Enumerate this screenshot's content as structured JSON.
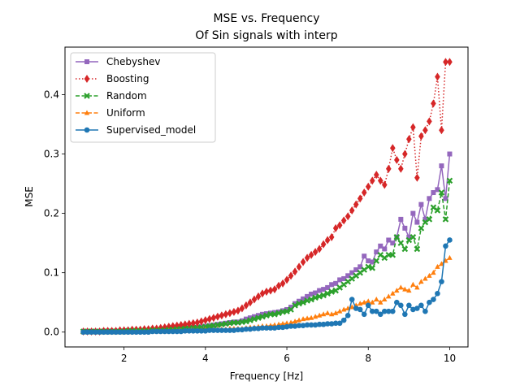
{
  "chart_data": {
    "type": "line",
    "title_lines": [
      "MSE vs. Frequency",
      "Of Sin signals with interp"
    ],
    "xlabel": "Frequency [Hz]",
    "ylabel": "MSE",
    "xlim": [
      0.55,
      10.45
    ],
    "ylim": [
      -0.025,
      0.48
    ],
    "xticks": [
      2,
      4,
      6,
      8,
      10
    ],
    "yticks": [
      0.0,
      0.1,
      0.2,
      0.3,
      0.4
    ],
    "xtick_labels": [
      "2",
      "4",
      "6",
      "8",
      "10"
    ],
    "ytick_labels": [
      "0.0",
      "0.1",
      "0.2",
      "0.3",
      "0.4"
    ],
    "grid": false,
    "legend_position": "upper-left",
    "x": [
      1.0,
      1.1,
      1.2,
      1.3,
      1.4,
      1.5,
      1.6,
      1.7,
      1.8,
      1.9,
      2.0,
      2.1,
      2.2,
      2.3,
      2.4,
      2.5,
      2.6,
      2.7,
      2.8,
      2.9,
      3.0,
      3.1,
      3.2,
      3.3,
      3.4,
      3.5,
      3.6,
      3.7,
      3.8,
      3.9,
      4.0,
      4.1,
      4.2,
      4.3,
      4.4,
      4.5,
      4.6,
      4.7,
      4.8,
      4.9,
      5.0,
      5.1,
      5.2,
      5.3,
      5.4,
      5.5,
      5.6,
      5.7,
      5.8,
      5.9,
      6.0,
      6.1,
      6.2,
      6.3,
      6.4,
      6.5,
      6.6,
      6.7,
      6.8,
      6.9,
      7.0,
      7.1,
      7.2,
      7.3,
      7.4,
      7.5,
      7.6,
      7.7,
      7.8,
      7.9,
      8.0,
      8.1,
      8.2,
      8.3,
      8.4,
      8.5,
      8.6,
      8.7,
      8.8,
      8.9,
      9.0,
      9.1,
      9.2,
      9.3,
      9.4,
      9.5,
      9.6,
      9.7,
      9.8,
      9.9,
      10.0
    ],
    "series": [
      {
        "name": "Chebyshev",
        "color": "#9467bd",
        "marker": "square",
        "dash": "solid",
        "values": [
          0.001,
          0.001,
          0.001,
          0.001,
          0.001,
          0.001,
          0.001,
          0.001,
          0.001,
          0.001,
          0.002,
          0.002,
          0.002,
          0.002,
          0.002,
          0.002,
          0.003,
          0.003,
          0.003,
          0.003,
          0.004,
          0.004,
          0.005,
          0.005,
          0.006,
          0.006,
          0.007,
          0.008,
          0.008,
          0.009,
          0.01,
          0.011,
          0.012,
          0.013,
          0.014,
          0.015,
          0.016,
          0.017,
          0.017,
          0.019,
          0.022,
          0.024,
          0.026,
          0.028,
          0.03,
          0.031,
          0.032,
          0.033,
          0.034,
          0.036,
          0.038,
          0.042,
          0.048,
          0.052,
          0.056,
          0.06,
          0.064,
          0.066,
          0.07,
          0.072,
          0.075,
          0.08,
          0.082,
          0.088,
          0.09,
          0.095,
          0.1,
          0.105,
          0.11,
          0.128,
          0.12,
          0.118,
          0.135,
          0.145,
          0.14,
          0.155,
          0.15,
          0.16,
          0.19,
          0.175,
          0.16,
          0.2,
          0.185,
          0.215,
          0.19,
          0.225,
          0.235,
          0.24,
          0.28,
          0.225,
          0.3
        ]
      },
      {
        "name": "Boosting",
        "color": "#d62728",
        "marker": "diamond",
        "dash": "dotted",
        "values": [
          0.001,
          0.001,
          0.001,
          0.001,
          0.001,
          0.002,
          0.002,
          0.002,
          0.002,
          0.003,
          0.003,
          0.003,
          0.004,
          0.004,
          0.004,
          0.005,
          0.005,
          0.006,
          0.006,
          0.007,
          0.008,
          0.009,
          0.01,
          0.011,
          0.012,
          0.013,
          0.014,
          0.015,
          0.016,
          0.018,
          0.02,
          0.022,
          0.024,
          0.026,
          0.028,
          0.03,
          0.032,
          0.034,
          0.036,
          0.04,
          0.045,
          0.05,
          0.055,
          0.06,
          0.065,
          0.068,
          0.07,
          0.072,
          0.078,
          0.082,
          0.088,
          0.095,
          0.102,
          0.11,
          0.118,
          0.125,
          0.13,
          0.135,
          0.14,
          0.148,
          0.155,
          0.16,
          0.175,
          0.18,
          0.188,
          0.195,
          0.205,
          0.215,
          0.225,
          0.235,
          0.245,
          0.255,
          0.265,
          0.255,
          0.248,
          0.275,
          0.31,
          0.29,
          0.275,
          0.3,
          0.325,
          0.345,
          0.26,
          0.33,
          0.34,
          0.355,
          0.385,
          0.43,
          0.34,
          0.455,
          0.455
        ]
      },
      {
        "name": "Random",
        "color": "#2ca02c",
        "marker": "x",
        "dash": "dashed",
        "values": [
          0.001,
          0.001,
          0.001,
          0.001,
          0.001,
          0.001,
          0.001,
          0.001,
          0.001,
          0.001,
          0.001,
          0.002,
          0.002,
          0.002,
          0.002,
          0.002,
          0.002,
          0.003,
          0.003,
          0.003,
          0.003,
          0.004,
          0.004,
          0.005,
          0.005,
          0.006,
          0.006,
          0.007,
          0.007,
          0.008,
          0.009,
          0.01,
          0.011,
          0.012,
          0.013,
          0.014,
          0.015,
          0.016,
          0.016,
          0.017,
          0.018,
          0.02,
          0.022,
          0.024,
          0.026,
          0.028,
          0.03,
          0.03,
          0.032,
          0.034,
          0.035,
          0.038,
          0.045,
          0.048,
          0.05,
          0.053,
          0.055,
          0.058,
          0.06,
          0.062,
          0.065,
          0.068,
          0.07,
          0.075,
          0.08,
          0.085,
          0.09,
          0.095,
          0.1,
          0.105,
          0.11,
          0.108,
          0.12,
          0.13,
          0.125,
          0.13,
          0.13,
          0.16,
          0.15,
          0.14,
          0.155,
          0.16,
          0.14,
          0.175,
          0.185,
          0.19,
          0.21,
          0.205,
          0.235,
          0.19,
          0.255
        ]
      },
      {
        "name": "Uniform",
        "color": "#ff7f0e",
        "marker": "triangle",
        "dash": "dashed",
        "values": [
          0.0,
          0.0,
          0.0,
          0.0,
          0.0,
          0.0,
          0.0,
          0.0,
          0.0,
          0.0,
          0.0,
          0.0,
          0.0,
          0.001,
          0.001,
          0.001,
          0.001,
          0.001,
          0.001,
          0.001,
          0.001,
          0.002,
          0.002,
          0.002,
          0.002,
          0.002,
          0.003,
          0.003,
          0.003,
          0.003,
          0.004,
          0.004,
          0.004,
          0.005,
          0.005,
          0.005,
          0.006,
          0.006,
          0.006,
          0.006,
          0.007,
          0.008,
          0.008,
          0.009,
          0.01,
          0.01,
          0.011,
          0.012,
          0.013,
          0.014,
          0.015,
          0.016,
          0.018,
          0.02,
          0.022,
          0.023,
          0.024,
          0.026,
          0.028,
          0.03,
          0.032,
          0.03,
          0.032,
          0.035,
          0.038,
          0.04,
          0.042,
          0.045,
          0.048,
          0.05,
          0.052,
          0.05,
          0.055,
          0.05,
          0.055,
          0.06,
          0.065,
          0.07,
          0.075,
          0.072,
          0.07,
          0.08,
          0.075,
          0.085,
          0.09,
          0.095,
          0.1,
          0.11,
          0.115,
          0.12,
          0.125
        ]
      },
      {
        "name": "Supervised_model",
        "color": "#1f77b4",
        "marker": "circle",
        "dash": "solid",
        "values": [
          0.0,
          0.0,
          0.0,
          0.0,
          0.0,
          0.0,
          0.0,
          0.0,
          0.0,
          0.0,
          0.0,
          0.0,
          0.0,
          0.0,
          0.0,
          0.0,
          0.0,
          0.001,
          0.001,
          0.001,
          0.001,
          0.001,
          0.001,
          0.001,
          0.001,
          0.002,
          0.002,
          0.002,
          0.002,
          0.002,
          0.002,
          0.003,
          0.003,
          0.003,
          0.003,
          0.003,
          0.003,
          0.003,
          0.004,
          0.004,
          0.005,
          0.005,
          0.006,
          0.006,
          0.007,
          0.007,
          0.007,
          0.007,
          0.008,
          0.008,
          0.009,
          0.01,
          0.01,
          0.011,
          0.011,
          0.012,
          0.012,
          0.012,
          0.013,
          0.013,
          0.014,
          0.014,
          0.015,
          0.015,
          0.02,
          0.028,
          0.055,
          0.04,
          0.038,
          0.03,
          0.045,
          0.035,
          0.035,
          0.03,
          0.035,
          0.035,
          0.035,
          0.05,
          0.045,
          0.03,
          0.045,
          0.038,
          0.04,
          0.045,
          0.035,
          0.05,
          0.055,
          0.065,
          0.085,
          0.145,
          0.155
        ]
      }
    ]
  }
}
